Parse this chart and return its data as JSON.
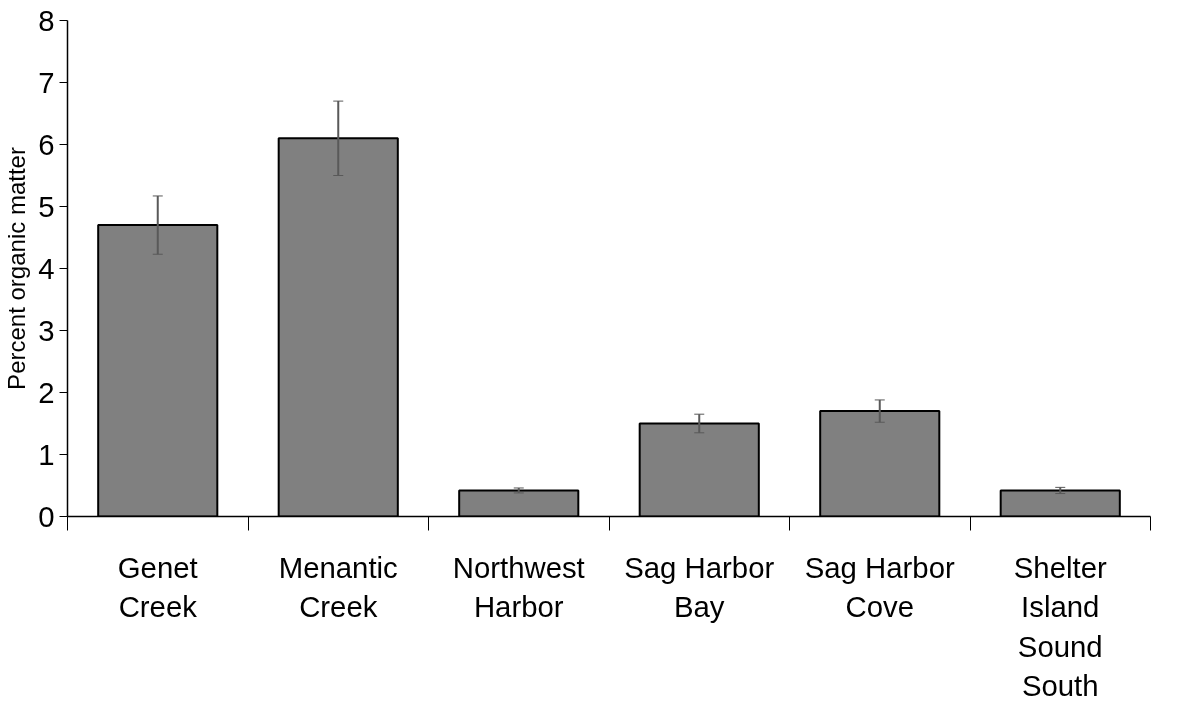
{
  "chart_data": {
    "type": "bar",
    "ylabel": "Percent organic matter",
    "categories": [
      "Genet\nCreek",
      "Menantic\nCreek",
      "Northwest\nHarbor",
      "Sag Harbor\nBay",
      "Sag Harbor\nCove",
      "Shelter\nIsland\nSound\nSouth"
    ],
    "values": [
      4.7,
      6.1,
      0.42,
      1.5,
      1.7,
      0.42
    ],
    "errors": [
      0.47,
      0.6,
      0.04,
      0.15,
      0.18,
      0.05
    ],
    "color": "#808080",
    "ylim": [
      0,
      8
    ],
    "yticks": [
      0,
      1,
      2,
      3,
      4,
      5,
      6,
      7,
      8
    ],
    "grid": false
  }
}
